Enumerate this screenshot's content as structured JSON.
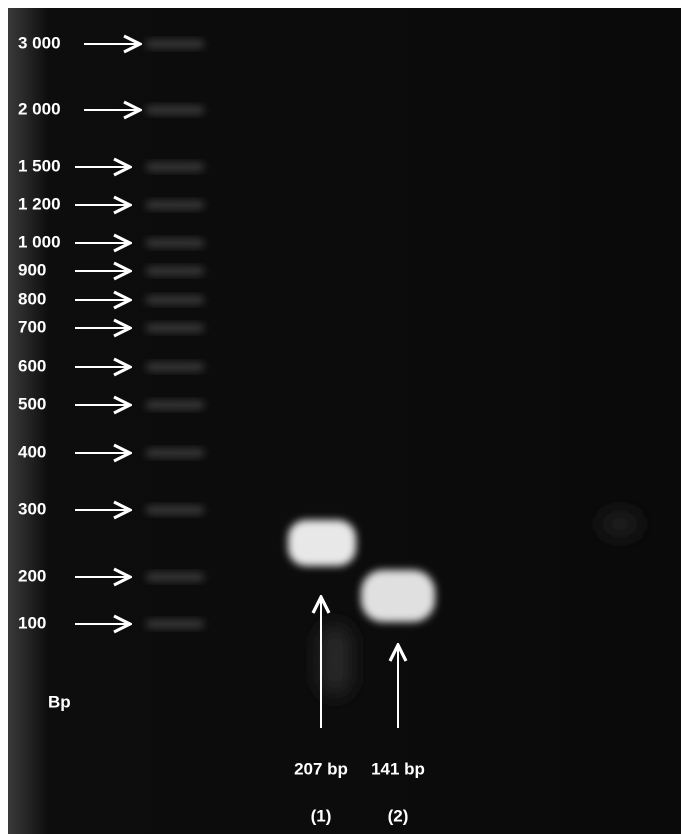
{
  "ladder": {
    "labels": [
      "3 000",
      "2 000",
      "1 500",
      "1 200",
      "1 000",
      "900",
      "800",
      "700",
      "600",
      "500",
      "400",
      "300",
      "200",
      "100"
    ],
    "unit": "Bp"
  },
  "lanes": [
    {
      "band": "207 bp",
      "label": "(1)"
    },
    {
      "band": "141 bp",
      "label": "(2)"
    }
  ]
}
